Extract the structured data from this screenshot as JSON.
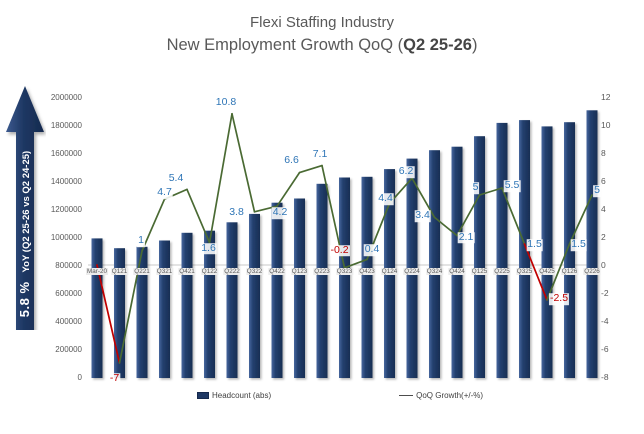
{
  "title": {
    "line1": "Flexi Staffing Industry",
    "line2_prefix": "New Employment Growth QoQ (",
    "line2_highlight": "Q2 25-26",
    "line2_suffix": ")"
  },
  "yoy_arrow": {
    "pct": "5.8 %",
    "label": "YoY (Q2 25-26 vs Q2 24-25)"
  },
  "legend": [
    {
      "label": "Headcount (abs)"
    },
    {
      "label": "QoQ Growth(+/-%)"
    }
  ],
  "chart_data": {
    "type": "bar+line-combo",
    "categories": [
      "Mar-20",
      "Q121",
      "Q221",
      "Q321",
      "Q421",
      "Q122",
      "Q222",
      "Q322",
      "Q422",
      "Q123",
      "Q223",
      "Q323",
      "Q423",
      "Q124",
      "Q224",
      "Q324",
      "Q424",
      "Q125",
      "Q225",
      "Q325",
      "Q425",
      "Q126",
      "Q226"
    ],
    "series": [
      {
        "name": "Headcount (abs)",
        "type": "bar",
        "axis": "left",
        "color": "#1f3864",
        "values": [
          990000,
          920000,
          930000,
          975000,
          1030000,
          1045000,
          1105000,
          1165000,
          1245000,
          1275000,
          1380000,
          1425000,
          1430000,
          1485000,
          1560000,
          1620000,
          1645000,
          1720000,
          1815000,
          1835000,
          1790000,
          1820000,
          1905000
        ]
      },
      {
        "name": "QoQ Growth(+/-%)",
        "type": "line",
        "axis": "right",
        "color": "#4a6a33",
        "negative_segment_color": "#c00000",
        "values": [
          0,
          -7,
          1,
          4.7,
          5.4,
          1.6,
          10.8,
          3.8,
          4.2,
          6.6,
          7.1,
          -0.2,
          0.4,
          4.4,
          6.2,
          3.4,
          2.1,
          5,
          5.5,
          1.5,
          -2.5,
          1.5,
          5
        ],
        "point_labels": [
          "",
          "-7",
          "1",
          "4.7",
          "5.4",
          "1.6",
          "10.8",
          "3.8",
          "4.2",
          "6.6",
          "7.1",
          "-0.2",
          "0.4",
          "4.4",
          "6.2",
          "3.4",
          "2.1",
          "5",
          "5.5",
          "1.5",
          "-2.5",
          "1.5",
          "5"
        ],
        "red_segments": [
          0,
          19
        ]
      }
    ],
    "left_axis": {
      "min": 0,
      "max": 2000000,
      "ticks": [
        "0",
        "200000",
        "400000",
        "600000",
        "800000",
        "1000000",
        "1200000",
        "1400000",
        "1600000",
        "1800000",
        "2000000"
      ]
    },
    "right_axis": {
      "min": -8,
      "max": 12,
      "ticks": [
        "-8",
        "-6",
        "-4",
        "-2",
        "0",
        "2",
        "4",
        "6",
        "8",
        "10",
        "12"
      ]
    },
    "label_colors": {
      "positive": "#2e75b6",
      "negative": "#c00000"
    },
    "label_offsets": [
      null,
      [
        -5,
        16
      ],
      [
        -1,
        -10
      ],
      [
        0,
        -6
      ],
      [
        -11,
        -10
      ],
      [
        -1,
        6
      ],
      [
        -6,
        -11
      ],
      [
        -18,
        1
      ],
      [
        3,
        7
      ],
      [
        -8,
        -12
      ],
      [
        -2,
        -11
      ],
      [
        -5,
        -17
      ],
      [
        5,
        -9
      ],
      [
        -4,
        -4
      ],
      [
        -6,
        -6
      ],
      [
        -12,
        -1
      ],
      [
        9,
        2
      ],
      [
        -4,
        -7
      ],
      [
        10,
        -2
      ],
      [
        10,
        1
      ],
      [
        12,
        -1
      ],
      [
        9,
        1
      ],
      [
        5,
        -4
      ]
    ],
    "grid": "off",
    "legend_position": "bottom"
  }
}
